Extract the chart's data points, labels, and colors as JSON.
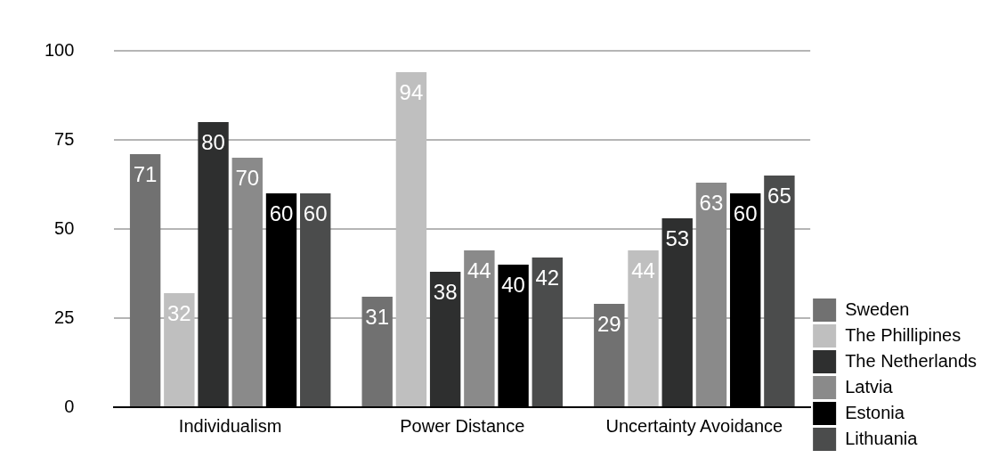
{
  "chart_data": {
    "type": "bar",
    "categories": [
      "Individualism",
      "Power Distance",
      "Uncertainty Avoidance"
    ],
    "series": [
      {
        "name": "Sweden",
        "color": "#717171",
        "values": [
          71,
          31,
          29
        ]
      },
      {
        "name": "The Phillipines",
        "color": "#bfbfbf",
        "values": [
          32,
          94,
          44
        ]
      },
      {
        "name": "The Netherlands",
        "color": "#2e2f2f",
        "values": [
          80,
          38,
          53
        ]
      },
      {
        "name": "Latvia",
        "color": "#8a8a8a",
        "values": [
          70,
          44,
          63
        ]
      },
      {
        "name": "Estonia",
        "color": "#000000",
        "values": [
          60,
          40,
          60
        ]
      },
      {
        "name": "Lithuania",
        "color": "#4b4c4c",
        "values": [
          60,
          42,
          65
        ]
      }
    ],
    "ylim": [
      0,
      100
    ],
    "yticks": [
      0,
      25,
      50,
      75,
      100
    ],
    "grid": "y",
    "legend": "right",
    "data_labels": true
  }
}
